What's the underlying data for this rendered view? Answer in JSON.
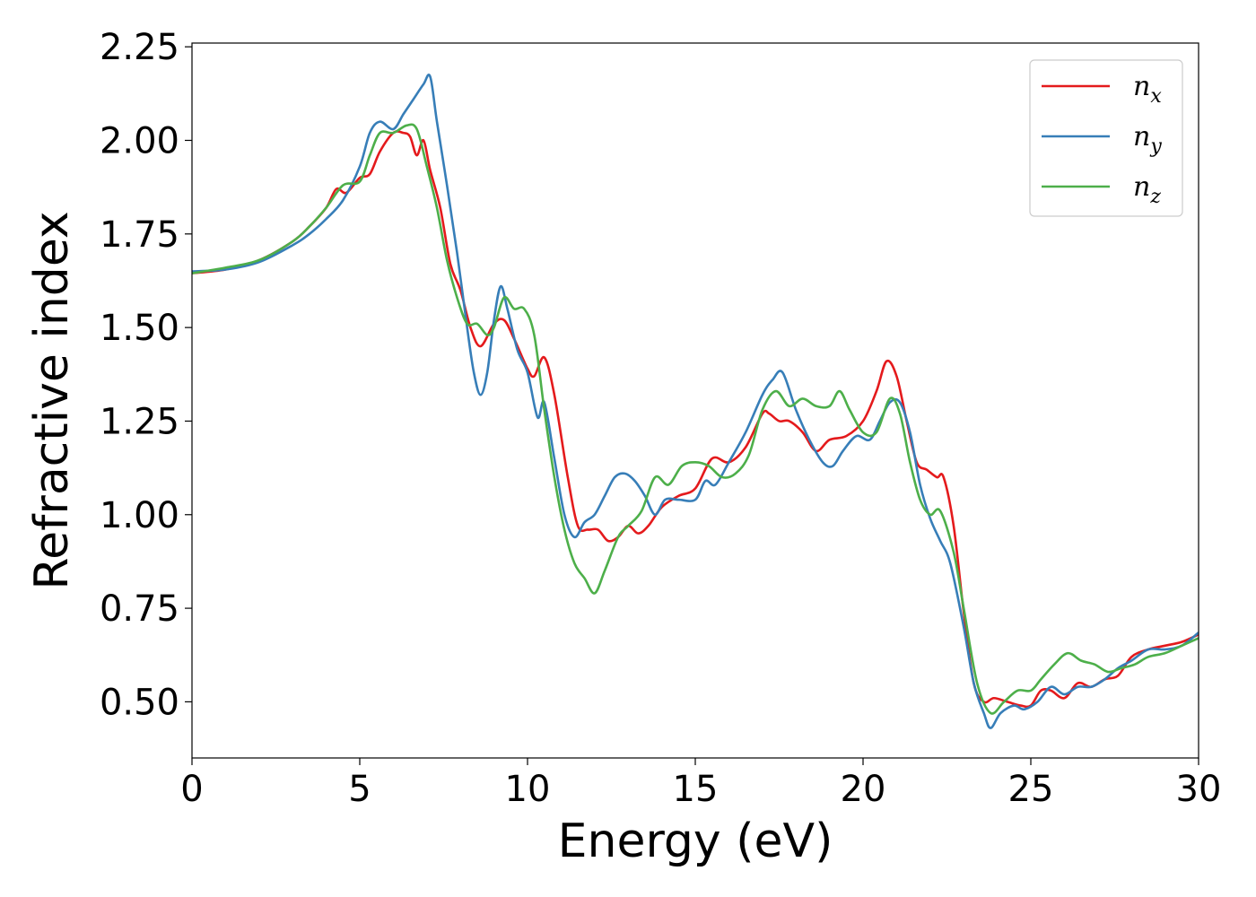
{
  "chart_data": {
    "type": "line",
    "title": "",
    "xlabel": "Energy (eV)",
    "ylabel": "Refractive index",
    "xlim": [
      0,
      30
    ],
    "ylim": [
      0.35,
      2.26
    ],
    "xticks": [
      0,
      5,
      10,
      15,
      20,
      25,
      30
    ],
    "xtick_labels": [
      "0",
      "5",
      "10",
      "15",
      "20",
      "25",
      "30"
    ],
    "yticks": [
      0.5,
      0.75,
      1.0,
      1.25,
      1.5,
      1.75,
      2.0,
      2.25
    ],
    "ytick_labels": [
      "0.50",
      "0.75",
      "1.00",
      "1.25",
      "1.50",
      "1.75",
      "2.00",
      "2.25"
    ],
    "grid": false,
    "legend_position": "upper-right",
    "series": [
      {
        "name": "n",
        "subscript": "x",
        "color": "#e41a1c",
        "x": [
          0,
          1,
          2,
          3,
          3.5,
          4,
          4.3,
          4.6,
          5,
          5.3,
          5.6,
          6.0,
          6.3,
          6.5,
          6.7,
          6.9,
          7.1,
          7.4,
          7.7,
          8.0,
          8.3,
          8.6,
          9.0,
          9.3,
          9.6,
          10.0,
          10.2,
          10.5,
          10.8,
          11.2,
          11.5,
          11.8,
          12.1,
          12.4,
          12.7,
          13.0,
          13.3,
          13.6,
          14.0,
          14.5,
          15.0,
          15.5,
          16.0,
          16.5,
          17.0,
          17.2,
          17.5,
          17.8,
          18.2,
          18.6,
          19.0,
          19.5,
          20.0,
          20.4,
          20.7,
          21.0,
          21.3,
          21.6,
          21.9,
          22.2,
          22.4,
          22.7,
          23.0,
          23.3,
          23.6,
          23.9,
          24.3,
          24.7,
          25.0,
          25.3,
          25.6,
          26.0,
          26.4,
          26.8,
          27.2,
          27.6,
          28.0,
          28.5,
          29.0,
          29.5,
          30.0
        ],
        "y": [
          1.645,
          1.655,
          1.68,
          1.73,
          1.77,
          1.82,
          1.87,
          1.86,
          1.9,
          1.91,
          1.97,
          2.02,
          2.02,
          2.01,
          1.96,
          2.0,
          1.92,
          1.82,
          1.67,
          1.6,
          1.5,
          1.45,
          1.51,
          1.52,
          1.47,
          1.39,
          1.37,
          1.42,
          1.32,
          1.1,
          0.97,
          0.96,
          0.96,
          0.93,
          0.94,
          0.97,
          0.95,
          0.97,
          1.02,
          1.05,
          1.07,
          1.15,
          1.14,
          1.18,
          1.27,
          1.27,
          1.25,
          1.25,
          1.22,
          1.17,
          1.2,
          1.21,
          1.25,
          1.33,
          1.41,
          1.37,
          1.25,
          1.14,
          1.12,
          1.1,
          1.1,
          0.97,
          0.74,
          0.55,
          0.5,
          0.51,
          0.5,
          0.49,
          0.49,
          0.53,
          0.53,
          0.51,
          0.55,
          0.54,
          0.56,
          0.57,
          0.62,
          0.64,
          0.65,
          0.66,
          0.68
        ]
      },
      {
        "name": "n",
        "subscript": "y",
        "color": "#377eb8",
        "x": [
          0,
          1,
          2,
          3,
          3.5,
          4,
          4.5,
          5.0,
          5.3,
          5.6,
          6.0,
          6.3,
          6.6,
          6.9,
          7.1,
          7.3,
          7.6,
          7.9,
          8.2,
          8.4,
          8.6,
          8.8,
          9.0,
          9.2,
          9.4,
          9.7,
          10.0,
          10.3,
          10.5,
          10.8,
          11.1,
          11.4,
          11.7,
          12.0,
          12.3,
          12.6,
          12.9,
          13.2,
          13.5,
          13.8,
          14.1,
          14.5,
          15.0,
          15.3,
          15.6,
          16.0,
          16.5,
          17.0,
          17.3,
          17.6,
          18.0,
          18.4,
          18.8,
          19.1,
          19.4,
          19.8,
          20.2,
          20.5,
          20.8,
          21.1,
          21.4,
          21.7,
          22.0,
          22.3,
          22.6,
          23.0,
          23.3,
          23.6,
          23.8,
          24.1,
          24.5,
          24.8,
          25.2,
          25.6,
          26.0,
          26.4,
          26.8,
          27.2,
          27.6,
          28.0,
          28.5,
          29.0,
          29.5,
          30.0
        ],
        "y": [
          1.65,
          1.655,
          1.675,
          1.72,
          1.75,
          1.79,
          1.84,
          1.93,
          2.02,
          2.05,
          2.03,
          2.07,
          2.11,
          2.15,
          2.17,
          2.05,
          1.88,
          1.7,
          1.5,
          1.38,
          1.32,
          1.38,
          1.52,
          1.61,
          1.55,
          1.44,
          1.38,
          1.26,
          1.3,
          1.15,
          1.0,
          0.94,
          0.98,
          1.0,
          1.05,
          1.1,
          1.11,
          1.09,
          1.05,
          1.0,
          1.04,
          1.04,
          1.04,
          1.09,
          1.08,
          1.14,
          1.22,
          1.32,
          1.36,
          1.38,
          1.28,
          1.2,
          1.14,
          1.13,
          1.17,
          1.21,
          1.2,
          1.25,
          1.3,
          1.3,
          1.22,
          1.08,
          0.99,
          0.93,
          0.87,
          0.7,
          0.55,
          0.47,
          0.43,
          0.47,
          0.49,
          0.48,
          0.5,
          0.54,
          0.52,
          0.54,
          0.54,
          0.56,
          0.59,
          0.61,
          0.64,
          0.64,
          0.65,
          0.685
        ]
      },
      {
        "name": "n",
        "subscript": "z",
        "color": "#4daf4a",
        "x": [
          0,
          1,
          2,
          3,
          3.5,
          4,
          4.5,
          5.0,
          5.3,
          5.6,
          6.0,
          6.4,
          6.7,
          7.0,
          7.3,
          7.6,
          7.9,
          8.2,
          8.5,
          8.8,
          9.0,
          9.3,
          9.6,
          9.9,
          10.2,
          10.5,
          10.8,
          11.1,
          11.4,
          11.7,
          12.0,
          12.3,
          12.7,
          13.0,
          13.4,
          13.8,
          14.2,
          14.6,
          15.0,
          15.4,
          15.8,
          16.2,
          16.6,
          17.0,
          17.4,
          17.8,
          18.2,
          18.6,
          19.0,
          19.3,
          19.6,
          20.0,
          20.4,
          20.8,
          21.1,
          21.4,
          21.7,
          22.0,
          22.3,
          22.7,
          23.0,
          23.4,
          23.8,
          24.2,
          24.6,
          25.0,
          25.3,
          25.7,
          26.1,
          26.5,
          26.9,
          27.3,
          27.7,
          28.1,
          28.5,
          29.0,
          29.5,
          30.0
        ],
        "y": [
          1.645,
          1.66,
          1.68,
          1.73,
          1.77,
          1.82,
          1.88,
          1.89,
          1.96,
          2.02,
          2.02,
          2.04,
          2.03,
          1.93,
          1.82,
          1.68,
          1.58,
          1.51,
          1.51,
          1.48,
          1.5,
          1.58,
          1.55,
          1.55,
          1.48,
          1.28,
          1.1,
          0.96,
          0.87,
          0.83,
          0.79,
          0.85,
          0.94,
          0.97,
          1.01,
          1.1,
          1.08,
          1.13,
          1.14,
          1.13,
          1.1,
          1.11,
          1.16,
          1.28,
          1.33,
          1.29,
          1.31,
          1.29,
          1.29,
          1.33,
          1.28,
          1.22,
          1.22,
          1.31,
          1.27,
          1.14,
          1.04,
          1.0,
          1.01,
          0.9,
          0.75,
          0.55,
          0.47,
          0.5,
          0.53,
          0.53,
          0.56,
          0.6,
          0.63,
          0.61,
          0.6,
          0.58,
          0.59,
          0.6,
          0.62,
          0.63,
          0.65,
          0.67
        ]
      }
    ]
  }
}
